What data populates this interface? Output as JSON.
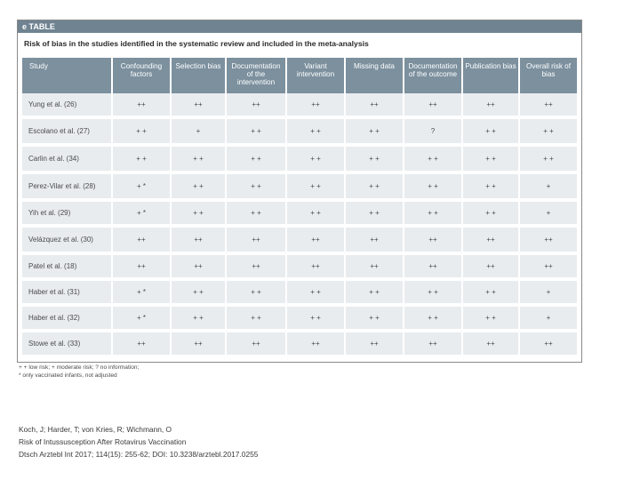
{
  "table": {
    "label": "e TABLE",
    "caption": "Risk of bias in the studies identified in the systematic review and included in the meta-analysis",
    "columns": [
      "Study",
      "Confounding factors",
      "Selection bias",
      "Documentation of the intervention",
      "Variant intervention",
      "Missing data",
      "Documentation of the outcome",
      "Publication bias",
      "Overall risk of bias"
    ],
    "rows": [
      [
        "Yung et al. (26)",
        "++",
        "++",
        "++",
        "++",
        "++",
        "++",
        "++",
        "++"
      ],
      [
        "Escolano et al. (27)",
        "+ +",
        "+",
        "+ +",
        "+ +",
        "+ +",
        "?",
        "+ +",
        "+ +"
      ],
      [
        "Carlin et al. (34)",
        "+ +",
        "+ +",
        "+ +",
        "+ +",
        "+ +",
        "+ +",
        "+ +",
        "+ +"
      ],
      [
        "Perez-Vilar et al. (28)",
        "+ *",
        "+ +",
        "+ +",
        "+ +",
        "+ +",
        "+ +",
        "+ +",
        "+"
      ],
      [
        "Yih et al. (29)",
        "+ *",
        "+ +",
        "+ +",
        "+ +",
        "+ +",
        "+ +",
        "+ +",
        "+"
      ],
      [
        "Velázquez et al. (30)",
        "++",
        "++",
        "++",
        "++",
        "++",
        "++",
        "++",
        "++"
      ],
      [
        "Patel et al. (18)",
        "++",
        "++",
        "++",
        "++",
        "++",
        "++",
        "++",
        "++"
      ],
      [
        "Haber et al. (31)",
        "+ *",
        "+ +",
        "+ +",
        "+ +",
        "+ +",
        "+ +",
        "+ +",
        "+"
      ],
      [
        "Haber et al. (32)",
        "+ *",
        "+ +",
        "+ +",
        "+ +",
        "+ +",
        "+ +",
        "+ +",
        "+"
      ],
      [
        "Stowe et al. (33)",
        "++",
        "++",
        "++",
        "++",
        "++",
        "++",
        "++",
        "++"
      ]
    ],
    "footnote_legend": "+ + low risk; + moderate risk; ? no information;",
    "footnote_star": "* only vaccinated infants, not adjusted"
  },
  "citation": {
    "authors": "Koch, J; Harder, T; von Kries, R; Wichmann, O",
    "title": "Risk of Intussusception After Rotavirus Vaccination",
    "journal": "Dtsch Arztebl Int 2017; 114(15): 255-62; DOI: 10.3238/arztebl.2017.0255"
  }
}
